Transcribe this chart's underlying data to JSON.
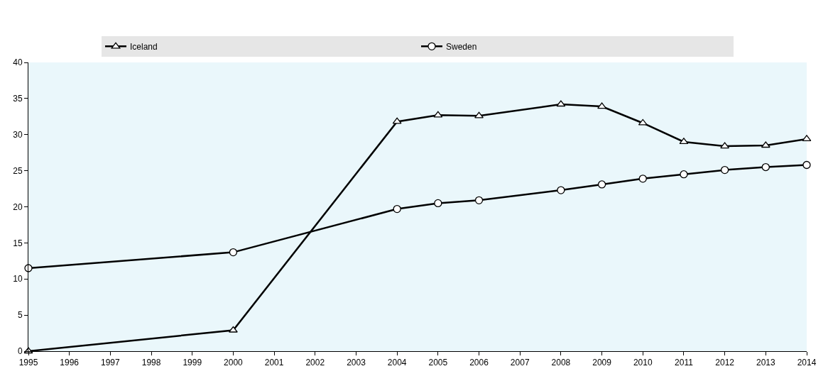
{
  "chart_data": {
    "type": "line",
    "x": [
      1995,
      2000,
      2004,
      2005,
      2006,
      2008,
      2009,
      2010,
      2011,
      2012,
      2013,
      2014
    ],
    "series": [
      {
        "name": "Iceland",
        "color": "#000000",
        "marker": "triangle",
        "values": [
          0,
          2.9,
          31.8,
          32.7,
          32.6,
          34.2,
          33.9,
          31.6,
          29.0,
          28.4,
          28.5,
          29.4
        ]
      },
      {
        "name": "Sweden",
        "color": "#000000",
        "marker": "circle",
        "values": [
          11.5,
          13.7,
          19.7,
          20.5,
          20.9,
          22.3,
          23.1,
          23.9,
          24.5,
          25.1,
          25.5,
          25.8
        ]
      }
    ],
    "xlim": [
      1995,
      2014
    ],
    "xticks": [
      1995,
      1996,
      1997,
      1998,
      1999,
      2000,
      2001,
      2002,
      2003,
      2004,
      2005,
      2006,
      2007,
      2008,
      2009,
      2010,
      2011,
      2012,
      2013,
      2014
    ],
    "ylim": [
      0,
      40
    ],
    "yticks": [
      0,
      5,
      10,
      15,
      20,
      25,
      30,
      35,
      40
    ],
    "legend": "top",
    "grid": false,
    "line_style": "solid"
  }
}
